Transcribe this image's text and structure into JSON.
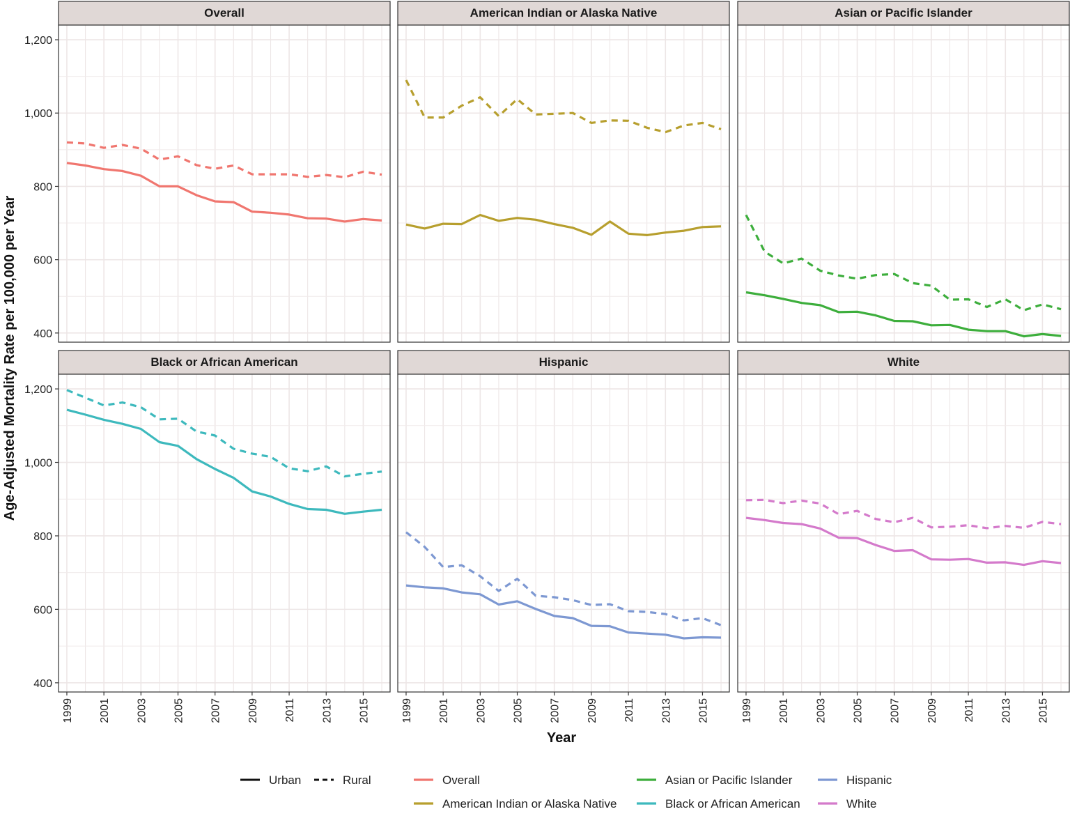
{
  "chart_data": {
    "type": "line",
    "layout": "facet-grid 2x3",
    "xlabel": "Year",
    "ylabel": "Age-Adjusted Mortality Rate per 100,000 per Year",
    "x": [
      1999,
      2000,
      2001,
      2002,
      2003,
      2004,
      2005,
      2006,
      2007,
      2008,
      2009,
      2010,
      2011,
      2012,
      2013,
      2014,
      2015,
      2016
    ],
    "x_ticks": [
      "1999",
      "2001",
      "2003",
      "2005",
      "2007",
      "2009",
      "2011",
      "2013",
      "2015"
    ],
    "y_ticks": [
      "400",
      "600",
      "800",
      "1,000",
      "1,200"
    ],
    "ylim_top_row": [
      375,
      1240
    ],
    "ylim_bottom_row": [
      375,
      1240
    ],
    "grid": true,
    "legend_position": "bottom",
    "linetype_legend": [
      {
        "label": "Urban",
        "dash": "solid"
      },
      {
        "label": "Rural",
        "dash": "dashed"
      }
    ],
    "color_legend": [
      {
        "label": "Overall",
        "color": "#F0766F"
      },
      {
        "label": "American Indian or Alaska Native",
        "color": "#B79F2E"
      },
      {
        "label": "Asian or Pacific Islander",
        "color": "#3DAE3C"
      },
      {
        "label": "Black or African American",
        "color": "#3DB9BD"
      },
      {
        "label": "Hispanic",
        "color": "#7D98D2"
      },
      {
        "label": "White",
        "color": "#D47ACB"
      }
    ],
    "panels": [
      {
        "title": "Overall",
        "color": "#F0766F",
        "urban": [
          864,
          857,
          847,
          842,
          829,
          800,
          800,
          776,
          759,
          757,
          731,
          728,
          723,
          713,
          712,
          704,
          711,
          707
        ],
        "rural": [
          920,
          917,
          905,
          913,
          903,
          873,
          882,
          858,
          848,
          857,
          833,
          833,
          833,
          826,
          831,
          825,
          840,
          832
        ]
      },
      {
        "title": "American Indian or Alaska Native",
        "color": "#B79F2E",
        "urban": [
          696,
          685,
          698,
          697,
          722,
          706,
          714,
          709,
          697,
          687,
          668,
          704,
          671,
          667,
          674,
          679,
          689,
          691
        ],
        "rural": [
          1090,
          988,
          988,
          1020,
          1043,
          992,
          1038,
          996,
          998,
          1000,
          973,
          980,
          979,
          960,
          948,
          966,
          973,
          956
        ]
      },
      {
        "title": "Asian or Pacific Islander",
        "color": "#3DAE3C",
        "urban": [
          511,
          503,
          493,
          482,
          476,
          457,
          458,
          448,
          433,
          432,
          421,
          422,
          409,
          405,
          405,
          391,
          397,
          392
        ],
        "rural": [
          722,
          622,
          590,
          603,
          570,
          557,
          548,
          558,
          561,
          536,
          529,
          491,
          492,
          471,
          492,
          462,
          478,
          465
        ]
      },
      {
        "title": "Black or African American",
        "color": "#3DB9BD",
        "urban": [
          1143,
          1130,
          1116,
          1105,
          1091,
          1055,
          1045,
          1009,
          982,
          958,
          921,
          907,
          887,
          873,
          871,
          860,
          866,
          871
        ],
        "rural": [
          1197,
          1176,
          1155,
          1163,
          1150,
          1117,
          1119,
          1084,
          1073,
          1037,
          1024,
          1015,
          984,
          976,
          989,
          962,
          969,
          975
        ]
      },
      {
        "title": "Hispanic",
        "color": "#7D98D2",
        "urban": [
          665,
          660,
          657,
          646,
          641,
          613,
          622,
          601,
          582,
          576,
          555,
          554,
          537,
          534,
          531,
          521,
          524,
          523
        ],
        "rural": [
          810,
          770,
          715,
          720,
          690,
          650,
          683,
          637,
          633,
          625,
          612,
          614,
          595,
          593,
          587,
          570,
          576,
          557
        ]
      },
      {
        "title": "White",
        "color": "#D47ACB",
        "urban": [
          849,
          843,
          835,
          832,
          820,
          795,
          794,
          775,
          759,
          761,
          736,
          735,
          737,
          727,
          728,
          721,
          731,
          726
        ],
        "rural": [
          897,
          898,
          889,
          896,
          888,
          859,
          868,
          846,
          837,
          849,
          823,
          825,
          829,
          821,
          827,
          822,
          838,
          832
        ]
      }
    ]
  }
}
